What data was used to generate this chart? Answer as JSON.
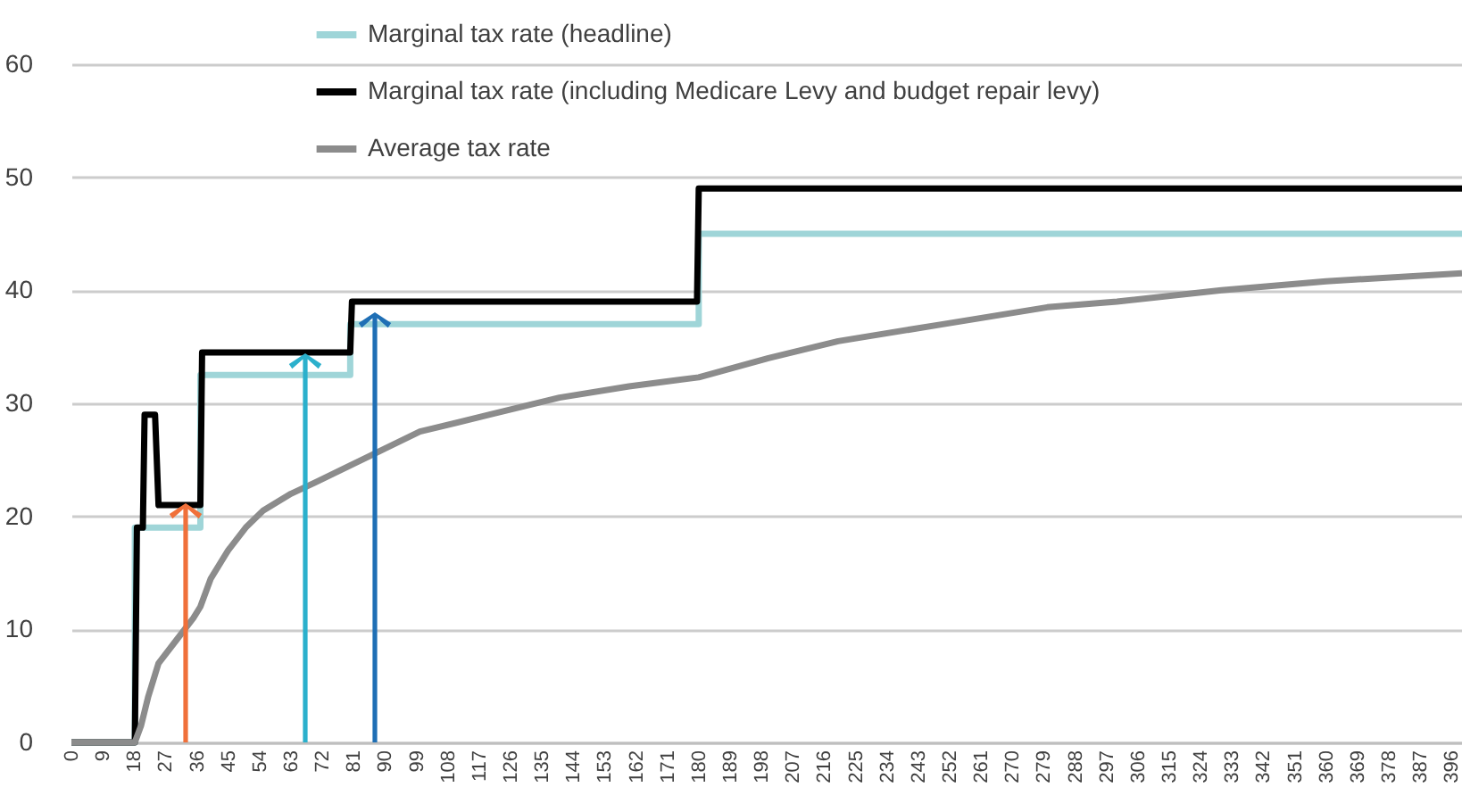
{
  "chart_data": {
    "type": "line",
    "xlim": [
      0,
      399
    ],
    "xticks": [
      0,
      9,
      18,
      27,
      36,
      45,
      54,
      63,
      72,
      81,
      90,
      99,
      108,
      117,
      126,
      135,
      144,
      153,
      162,
      171,
      180,
      189,
      198,
      207,
      216,
      225,
      234,
      243,
      252,
      261,
      270,
      279,
      288,
      297,
      306,
      315,
      324,
      333,
      342,
      351,
      360,
      369,
      378,
      387,
      396
    ],
    "ylim": [
      0,
      60
    ],
    "yticks": [
      0,
      10,
      20,
      30,
      40,
      50,
      60
    ],
    "grid": "y",
    "legend": "top",
    "marker": "none",
    "line_style": "solid",
    "series": [
      {
        "name": "Marginal tax rate (headline)",
        "color": "#9fd5d8",
        "x": [
          0,
          18.2,
          18.2,
          37,
          37,
          80,
          80,
          180,
          180,
          399
        ],
        "values": [
          0,
          0,
          19,
          19,
          32.5,
          32.5,
          37,
          37,
          45,
          45
        ]
      },
      {
        "name": "Marginal tax rate (including Medicare Levy and budget repair levy)",
        "color": "#000000",
        "x": [
          0,
          18.2,
          18.8,
          20.5,
          21,
          24,
          25,
          37,
          37.5,
          80,
          80.5,
          179.5,
          180,
          399
        ],
        "values": [
          0,
          0,
          19,
          19,
          29,
          29,
          21,
          21,
          34.5,
          34.5,
          39,
          39,
          49,
          49
        ]
      },
      {
        "name": "Average tax rate",
        "color": "#8c8c8c",
        "x": [
          0,
          18.2,
          20,
          22,
          25,
          30,
          35,
          37,
          40,
          45,
          50,
          55,
          63,
          70,
          80,
          90,
          100,
          120,
          140,
          160,
          180,
          200,
          220,
          250,
          280,
          300,
          330,
          360,
          399
        ],
        "values": [
          0,
          0,
          1.5,
          4,
          7,
          9,
          11,
          12,
          14.5,
          17,
          19,
          20.5,
          22,
          23,
          24.5,
          26,
          27.5,
          29,
          30.5,
          31.5,
          32.3,
          34,
          35.5,
          37,
          38.5,
          39,
          40,
          40.8,
          41.5
        ]
      }
    ]
  }
}
